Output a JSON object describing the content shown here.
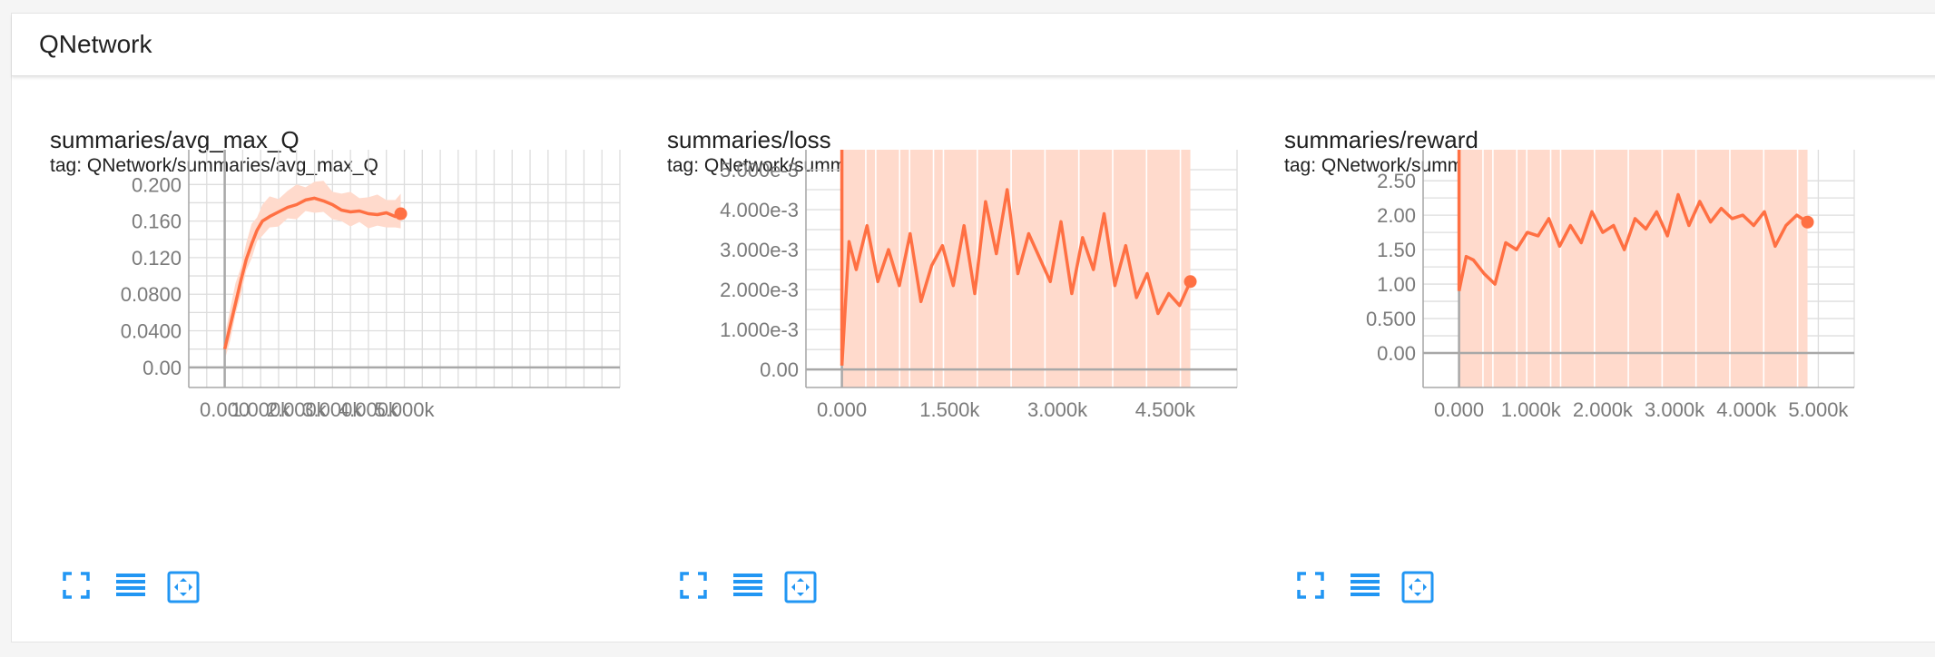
{
  "section": {
    "title": "QNetwork"
  },
  "colors": {
    "line": "#ff7043",
    "band": "#ffdacc",
    "axis": "#a8a8a8",
    "grid": "#dddddd",
    "icon": "#2196f3"
  },
  "controls": {
    "icons": [
      "fullscreen-icon",
      "list-icon",
      "fit-domain-icon"
    ]
  },
  "chart_data": [
    {
      "type": "line",
      "title": "summaries/avg_max_Q",
      "subtitle": "tag: QNetwork/summaries/avg_max_Q",
      "xlim": [
        -1000,
        11000
      ],
      "ylim": [
        -0.022,
        0.238
      ],
      "x_ticks": [
        0,
        1000,
        2000,
        3000,
        4000,
        5000
      ],
      "x_tick_labels": [
        "0.000",
        "1.000k",
        "2.000k",
        "3.000k",
        "4.000k",
        "5.000k"
      ],
      "y_ticks": [
        0,
        0.04,
        0.08,
        0.12,
        0.16,
        0.2
      ],
      "y_tick_labels": [
        "0.00",
        "0.0400",
        "0.0800",
        "0.120",
        "0.160",
        "0.200"
      ],
      "band": "fluctuating",
      "series": [
        {
          "x": [
            0,
            150,
            300,
            450,
            600,
            750,
            900,
            1050,
            1250,
            1500,
            1750,
            2000,
            2250,
            2500,
            2750,
            3000,
            3250,
            3500,
            3750,
            4000,
            4250,
            4500,
            4750,
            4900
          ],
          "y": [
            0.02,
            0.045,
            0.07,
            0.095,
            0.118,
            0.135,
            0.15,
            0.16,
            0.165,
            0.17,
            0.175,
            0.178,
            0.183,
            0.185,
            0.182,
            0.178,
            0.172,
            0.17,
            0.171,
            0.168,
            0.167,
            0.169,
            0.165,
            0.168
          ]
        }
      ]
    },
    {
      "type": "line",
      "title": "summaries/loss",
      "subtitle": "tag: QNetwork/summaries/loss",
      "xlim": [
        -500,
        5500
      ],
      "ylim": [
        -0.00045,
        0.0055
      ],
      "x_ticks": [
        0,
        1500,
        3000,
        4500
      ],
      "x_tick_labels": [
        "0.000",
        "1.500k",
        "3.000k",
        "4.500k"
      ],
      "y_ticks": [
        0,
        0.001,
        0.002,
        0.003,
        0.004,
        0.005
      ],
      "y_tick_labels": [
        "0.00",
        "1.000e-3",
        "2.000e-3",
        "3.000e-3",
        "4.000e-3",
        "5.000e-3"
      ],
      "band": "full",
      "series": [
        {
          "x": [
            0,
            100,
            200,
            350,
            500,
            650,
            800,
            950,
            1100,
            1250,
            1400,
            1550,
            1700,
            1850,
            2000,
            2150,
            2300,
            2450,
            2600,
            2750,
            2900,
            3050,
            3200,
            3350,
            3500,
            3650,
            3800,
            3950,
            4100,
            4250,
            4400,
            4550,
            4700,
            4850
          ],
          "y": [
            0.0001,
            0.0032,
            0.0025,
            0.0036,
            0.0022,
            0.003,
            0.0021,
            0.0034,
            0.0017,
            0.0026,
            0.0031,
            0.0021,
            0.0036,
            0.0019,
            0.0042,
            0.0029,
            0.0045,
            0.0024,
            0.0034,
            0.0028,
            0.0022,
            0.0037,
            0.0019,
            0.0033,
            0.0025,
            0.0039,
            0.0021,
            0.0031,
            0.0018,
            0.0024,
            0.0014,
            0.0019,
            0.0016,
            0.0022
          ]
        }
      ]
    },
    {
      "type": "line",
      "title": "summaries/reward",
      "subtitle": "tag: QNetwork/summaries/reward",
      "xlim": [
        -500,
        5500
      ],
      "ylim": [
        -0.5,
        2.95
      ],
      "x_ticks": [
        0,
        1000,
        2000,
        3000,
        4000,
        5000
      ],
      "x_tick_labels": [
        "0.000",
        "1.000k",
        "2.000k",
        "3.000k",
        "4.000k",
        "5.000k"
      ],
      "y_ticks": [
        0,
        0.5,
        1,
        1.5,
        2,
        2.5
      ],
      "y_tick_labels": [
        "0.00",
        "0.500",
        "1.00",
        "1.50",
        "2.00",
        "2.50"
      ],
      "band": "full",
      "series": [
        {
          "x": [
            0,
            100,
            200,
            350,
            500,
            650,
            800,
            950,
            1100,
            1250,
            1400,
            1550,
            1700,
            1850,
            2000,
            2150,
            2300,
            2450,
            2600,
            2750,
            2900,
            3050,
            3200,
            3350,
            3500,
            3650,
            3800,
            3950,
            4100,
            4250,
            4400,
            4550,
            4700,
            4850
          ],
          "y": [
            0.9,
            1.4,
            1.35,
            1.15,
            1.0,
            1.6,
            1.5,
            1.75,
            1.7,
            1.95,
            1.55,
            1.85,
            1.6,
            2.05,
            1.75,
            1.85,
            1.5,
            1.95,
            1.8,
            2.05,
            1.7,
            2.3,
            1.85,
            2.2,
            1.9,
            2.1,
            1.95,
            2.0,
            1.85,
            2.05,
            1.55,
            1.85,
            2.0,
            1.9
          ]
        }
      ]
    }
  ]
}
